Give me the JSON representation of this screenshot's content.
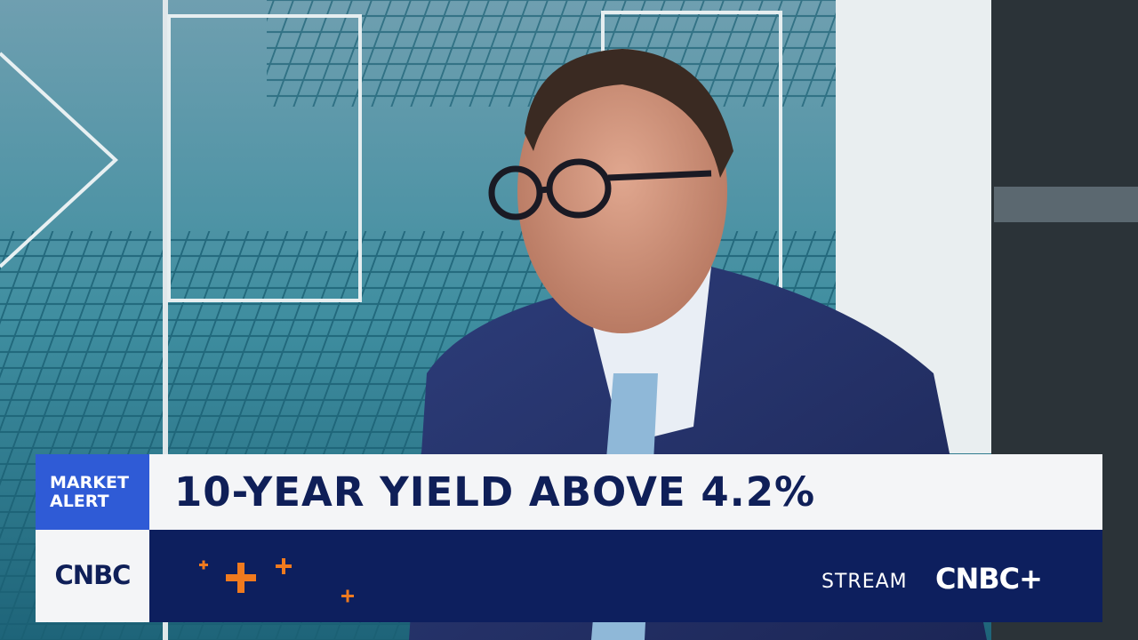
{
  "alert": {
    "line1": "MARKET",
    "line2": "ALERT"
  },
  "headline": "10-YEAR YIELD ABOVE 4.2%",
  "logo": "CNBC",
  "promo": {
    "label": "STREAM",
    "brand": "CNBC+"
  }
}
